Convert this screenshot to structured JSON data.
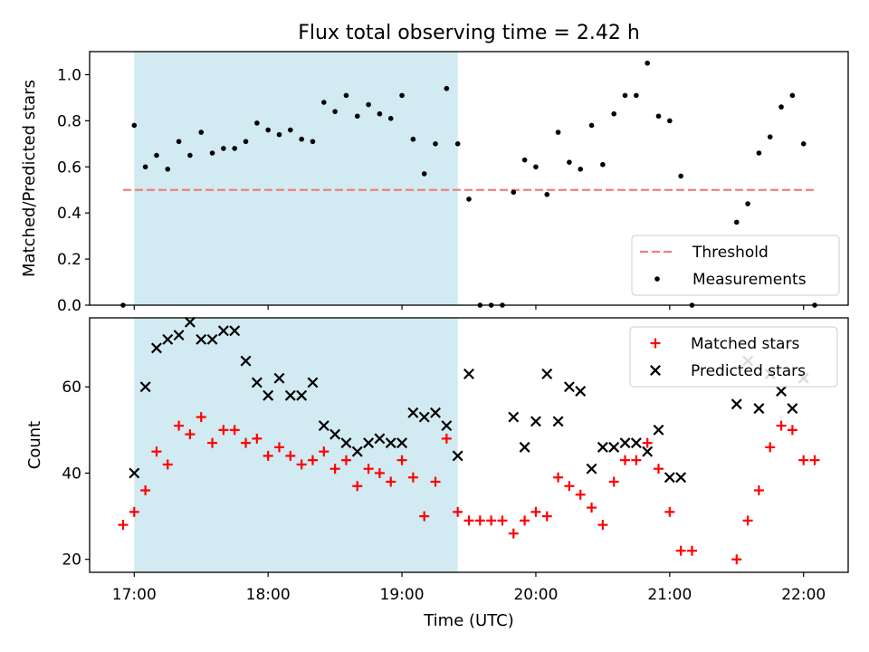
{
  "title": "Flux total observing time = 2.42 h",
  "xlabel": "Time (UTC)",
  "colors": {
    "shade": "#add8e6",
    "threshold": "#f08080",
    "matched": "#ff0000",
    "predicted": "#000000",
    "measurement": "#000000"
  },
  "chart_data": [
    {
      "type": "scatter",
      "ylabel": "Matched/Predicted stars",
      "ylim": [
        0,
        1.1
      ],
      "xlim": [
        "16:40",
        "22:20"
      ],
      "yticks": [
        0.0,
        0.2,
        0.4,
        0.6,
        0.8,
        1.0
      ],
      "ytick_labels": [
        "0.0",
        "0.2",
        "0.4",
        "0.6",
        "0.8",
        "1.0"
      ],
      "x_tick_labels": [
        "17:00",
        "18:00",
        "19:00",
        "20:00",
        "21:00",
        "22:00"
      ],
      "shaded_interval": [
        "17:00",
        "19:25"
      ],
      "threshold": 0.5,
      "legend_location": "lower-right",
      "legend": [
        "Threshold",
        "Measurements"
      ],
      "series": [
        {
          "name": "Measurements",
          "marker": "dot",
          "points": [
            [
              "16:55",
              0.0
            ],
            [
              "17:00",
              0.78
            ],
            [
              "17:05",
              0.6
            ],
            [
              "17:10",
              0.65
            ],
            [
              "17:15",
              0.59
            ],
            [
              "17:20",
              0.71
            ],
            [
              "17:25",
              0.65
            ],
            [
              "17:30",
              0.75
            ],
            [
              "17:35",
              0.66
            ],
            [
              "17:40",
              0.68
            ],
            [
              "17:45",
              0.68
            ],
            [
              "17:50",
              0.71
            ],
            [
              "17:55",
              0.79
            ],
            [
              "18:00",
              0.76
            ],
            [
              "18:05",
              0.74
            ],
            [
              "18:10",
              0.76
            ],
            [
              "18:15",
              0.72
            ],
            [
              "18:20",
              0.71
            ],
            [
              "18:25",
              0.88
            ],
            [
              "18:30",
              0.84
            ],
            [
              "18:35",
              0.91
            ],
            [
              "18:40",
              0.82
            ],
            [
              "18:45",
              0.87
            ],
            [
              "18:50",
              0.83
            ],
            [
              "18:55",
              0.81
            ],
            [
              "19:00",
              0.91
            ],
            [
              "19:05",
              0.72
            ],
            [
              "19:10",
              0.57
            ],
            [
              "19:15",
              0.7
            ],
            [
              "19:20",
              0.94
            ],
            [
              "19:25",
              0.7
            ],
            [
              "19:30",
              0.46
            ],
            [
              "19:35",
              0.0
            ],
            [
              "19:40",
              0.0
            ],
            [
              "19:45",
              0.0
            ],
            [
              "19:50",
              0.49
            ],
            [
              "19:55",
              0.63
            ],
            [
              "20:00",
              0.6
            ],
            [
              "20:05",
              0.48
            ],
            [
              "20:10",
              0.75
            ],
            [
              "20:15",
              0.62
            ],
            [
              "20:20",
              0.59
            ],
            [
              "20:25",
              0.78
            ],
            [
              "20:30",
              0.61
            ],
            [
              "20:35",
              0.83
            ],
            [
              "20:40",
              0.91
            ],
            [
              "20:45",
              0.91
            ],
            [
              "20:50",
              1.05
            ],
            [
              "20:55",
              0.82
            ],
            [
              "21:00",
              0.8
            ],
            [
              "21:05",
              0.56
            ],
            [
              "21:10",
              0.0
            ],
            [
              "21:30",
              0.36
            ],
            [
              "21:35",
              0.44
            ],
            [
              "21:40",
              0.66
            ],
            [
              "21:45",
              0.73
            ],
            [
              "21:50",
              0.86
            ],
            [
              "21:55",
              0.91
            ],
            [
              "22:00",
              0.7
            ],
            [
              "22:05",
              0.0
            ]
          ]
        }
      ]
    },
    {
      "type": "scatter",
      "ylabel": "Count",
      "ylim": [
        17,
        76
      ],
      "xlim": [
        "16:40",
        "22:20"
      ],
      "yticks": [
        20,
        40,
        60
      ],
      "ytick_labels": [
        "20",
        "40",
        "60"
      ],
      "x_tick_labels": [
        "17:00",
        "18:00",
        "19:00",
        "20:00",
        "21:00",
        "22:00"
      ],
      "shaded_interval": [
        "17:00",
        "19:25"
      ],
      "legend_location": "upper-right",
      "legend": [
        "Matched stars",
        "Predicted stars"
      ],
      "series": [
        {
          "name": "Matched stars",
          "marker": "plus",
          "points": [
            [
              "16:55",
              28
            ],
            [
              "17:00",
              31
            ],
            [
              "17:05",
              36
            ],
            [
              "17:10",
              45
            ],
            [
              "17:15",
              42
            ],
            [
              "17:20",
              51
            ],
            [
              "17:25",
              49
            ],
            [
              "17:30",
              53
            ],
            [
              "17:35",
              47
            ],
            [
              "17:40",
              50
            ],
            [
              "17:45",
              50
            ],
            [
              "17:50",
              47
            ],
            [
              "17:55",
              48
            ],
            [
              "18:00",
              44
            ],
            [
              "18:05",
              46
            ],
            [
              "18:10",
              44
            ],
            [
              "18:15",
              42
            ],
            [
              "18:20",
              43
            ],
            [
              "18:25",
              45
            ],
            [
              "18:30",
              41
            ],
            [
              "18:35",
              43
            ],
            [
              "18:40",
              37
            ],
            [
              "18:45",
              41
            ],
            [
              "18:50",
              40
            ],
            [
              "18:55",
              38
            ],
            [
              "19:00",
              43
            ],
            [
              "19:05",
              39
            ],
            [
              "19:10",
              30
            ],
            [
              "19:15",
              38
            ],
            [
              "19:20",
              48
            ],
            [
              "19:25",
              31
            ],
            [
              "19:30",
              29
            ],
            [
              "19:35",
              29
            ],
            [
              "19:40",
              29
            ],
            [
              "19:45",
              29
            ],
            [
              "19:50",
              26
            ],
            [
              "19:55",
              29
            ],
            [
              "20:00",
              31
            ],
            [
              "20:05",
              30
            ],
            [
              "20:10",
              39
            ],
            [
              "20:15",
              37
            ],
            [
              "20:20",
              35
            ],
            [
              "20:25",
              32
            ],
            [
              "20:30",
              28
            ],
            [
              "20:35",
              38
            ],
            [
              "20:40",
              43
            ],
            [
              "20:45",
              43
            ],
            [
              "20:50",
              47
            ],
            [
              "20:55",
              41
            ],
            [
              "21:00",
              31
            ],
            [
              "21:05",
              22
            ],
            [
              "21:10",
              22
            ],
            [
              "21:30",
              20
            ],
            [
              "21:35",
              29
            ],
            [
              "21:40",
              36
            ],
            [
              "21:45",
              46
            ],
            [
              "21:50",
              51
            ],
            [
              "21:55",
              50
            ],
            [
              "22:00",
              43
            ],
            [
              "22:05",
              43
            ]
          ]
        },
        {
          "name": "Predicted stars",
          "marker": "x",
          "points": [
            [
              "17:00",
              40
            ],
            [
              "17:05",
              60
            ],
            [
              "17:10",
              69
            ],
            [
              "17:15",
              71
            ],
            [
              "17:20",
              72
            ],
            [
              "17:25",
              75
            ],
            [
              "17:30",
              71
            ],
            [
              "17:35",
              71
            ],
            [
              "17:40",
              73
            ],
            [
              "17:45",
              73
            ],
            [
              "17:50",
              66
            ],
            [
              "17:55",
              61
            ],
            [
              "18:00",
              58
            ],
            [
              "18:05",
              62
            ],
            [
              "18:10",
              58
            ],
            [
              "18:15",
              58
            ],
            [
              "18:20",
              61
            ],
            [
              "18:25",
              51
            ],
            [
              "18:30",
              49
            ],
            [
              "18:35",
              47
            ],
            [
              "18:40",
              45
            ],
            [
              "18:45",
              47
            ],
            [
              "18:50",
              48
            ],
            [
              "18:55",
              47
            ],
            [
              "19:00",
              47
            ],
            [
              "19:05",
              54
            ],
            [
              "19:10",
              53
            ],
            [
              "19:15",
              54
            ],
            [
              "19:20",
              51
            ],
            [
              "19:25",
              44
            ],
            [
              "19:30",
              63
            ],
            [
              "19:50",
              53
            ],
            [
              "19:55",
              46
            ],
            [
              "20:00",
              52
            ],
            [
              "20:05",
              63
            ],
            [
              "20:10",
              52
            ],
            [
              "20:15",
              60
            ],
            [
              "20:20",
              59
            ],
            [
              "20:25",
              41
            ],
            [
              "20:30",
              46
            ],
            [
              "20:35",
              46
            ],
            [
              "20:40",
              47
            ],
            [
              "20:45",
              47
            ],
            [
              "20:50",
              45
            ],
            [
              "20:55",
              50
            ],
            [
              "21:00",
              39
            ],
            [
              "21:05",
              39
            ],
            [
              "21:30",
              56
            ],
            [
              "21:35",
              66
            ],
            [
              "21:40",
              55
            ],
            [
              "21:45",
              63
            ],
            [
              "21:50",
              59
            ],
            [
              "21:55",
              55
            ],
            [
              "22:00",
              62
            ]
          ]
        }
      ]
    }
  ]
}
